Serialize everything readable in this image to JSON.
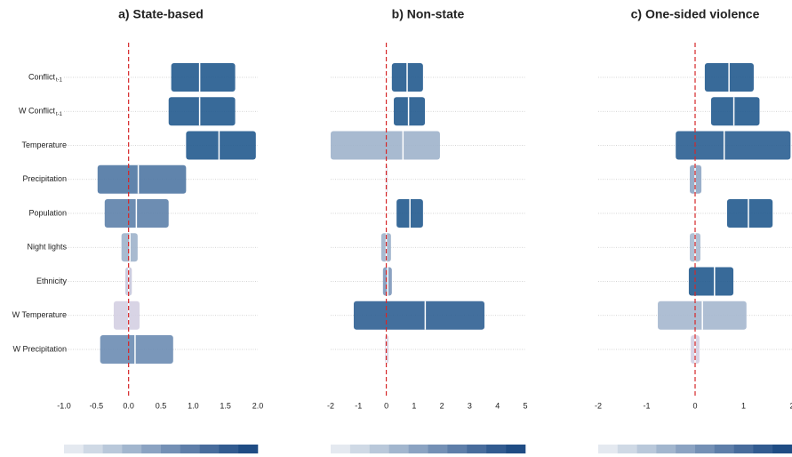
{
  "chart_data": [
    {
      "type": "interval",
      "title": "a) State-based",
      "categories": [
        "Conflict",
        "W Conflict",
        "Temperature",
        "Precipitation",
        "Population",
        "Night lights",
        "Ethnicity",
        "W Temperature",
        "W Precipitation"
      ],
      "category_subscripts": [
        "t-1",
        "t-1",
        null,
        null,
        null,
        null,
        null,
        null,
        null
      ],
      "values": [
        1.1,
        1.1,
        1.4,
        0.15,
        0.12,
        0.02,
        0,
        0,
        0.1
      ],
      "low": [
        0.66,
        0.62,
        0.89,
        -0.48,
        -0.37,
        -0.11,
        -0.05,
        -0.23,
        -0.44
      ],
      "high": [
        1.65,
        1.65,
        1.97,
        0.89,
        0.62,
        0.14,
        0.05,
        0.17,
        0.69
      ],
      "colors": [
        "#225a8e",
        "#225a8e",
        "#225a8e",
        "#4f77a3",
        "#5d81aa",
        "#9fb3cb",
        "#c6c6dc",
        "#d4cfe2",
        "#6c8cb2"
      ],
      "xlim": [
        -1,
        2
      ],
      "xticks": [
        {
          "value": -1,
          "label": "-1.0"
        },
        {
          "value": -0.5,
          "label": "-0.5"
        },
        {
          "value": 0,
          "label": "0.0"
        },
        {
          "value": 0.5,
          "label": "0.5"
        },
        {
          "value": 1,
          "label": "1.0"
        },
        {
          "value": 1.5,
          "label": "1.5"
        },
        {
          "value": 2,
          "label": "2.0"
        }
      ],
      "colorscale": [
        "#e4e9f0",
        "#cfd9e5",
        "#b9c8da",
        "#a2b6ce",
        "#8ba3c2",
        "#7490b5",
        "#5e7ea9",
        "#486c9c",
        "#325b90",
        "#1f4c84"
      ]
    },
    {
      "type": "interval",
      "title": "b) Non-state",
      "values": [
        0.75,
        0.8,
        0.6,
        0,
        0.85,
        0,
        0.05,
        1.4,
        0
      ],
      "low": [
        0.2,
        0.27,
        -2,
        -0.03,
        0.37,
        -0.18,
        -0.12,
        -1.17,
        -0.05
      ],
      "high": [
        1.32,
        1.39,
        1.93,
        0.05,
        1.32,
        0.17,
        0.2,
        3.53,
        0.08
      ],
      "colors": [
        "#225a8e",
        "#225a8e",
        "#9fb3cb",
        "#d4cfe2",
        "#225a8e",
        "#9fb3cb",
        "#7e98bb",
        "#2f5f92",
        "#d4cfe2"
      ],
      "xlim": [
        -2,
        5
      ],
      "xticks": [
        -2,
        -1,
        0,
        1,
        2,
        3,
        4,
        5
      ],
      "colorscale": [
        "#e4e9f0",
        "#cfd9e5",
        "#b9c8da",
        "#a2b6ce",
        "#8ba3c2",
        "#7490b5",
        "#5e7ea9",
        "#486c9c",
        "#325b90",
        "#1f4c84"
      ]
    },
    {
      "type": "interval",
      "title": "c) One-sided violence",
      "values": [
        0.7,
        0.8,
        0.6,
        0,
        1.1,
        0,
        0.4,
        0.15,
        0
      ],
      "low": [
        0.2,
        0.33,
        -0.4,
        -0.11,
        0.66,
        -0.11,
        -0.13,
        -0.77,
        -0.09
      ],
      "high": [
        1.21,
        1.33,
        1.97,
        0.13,
        1.6,
        0.11,
        0.79,
        1.06,
        0.09
      ],
      "colors": [
        "#225a8e",
        "#225a8e",
        "#2a5e91",
        "#8fa6c4",
        "#225a8e",
        "#a9bad0",
        "#225a8e",
        "#a5b7ce",
        "#d4cfe2"
      ],
      "xlim": [
        -2,
        2
      ],
      "xticks": [
        -2,
        -1,
        0,
        1,
        2
      ],
      "colorscale": [
        "#e4e9f0",
        "#cfd9e5",
        "#b9c8da",
        "#a2b6ce",
        "#8ba3c2",
        "#7490b5",
        "#5e7ea9",
        "#486c9c",
        "#325b90",
        "#1f4c84"
      ]
    }
  ]
}
